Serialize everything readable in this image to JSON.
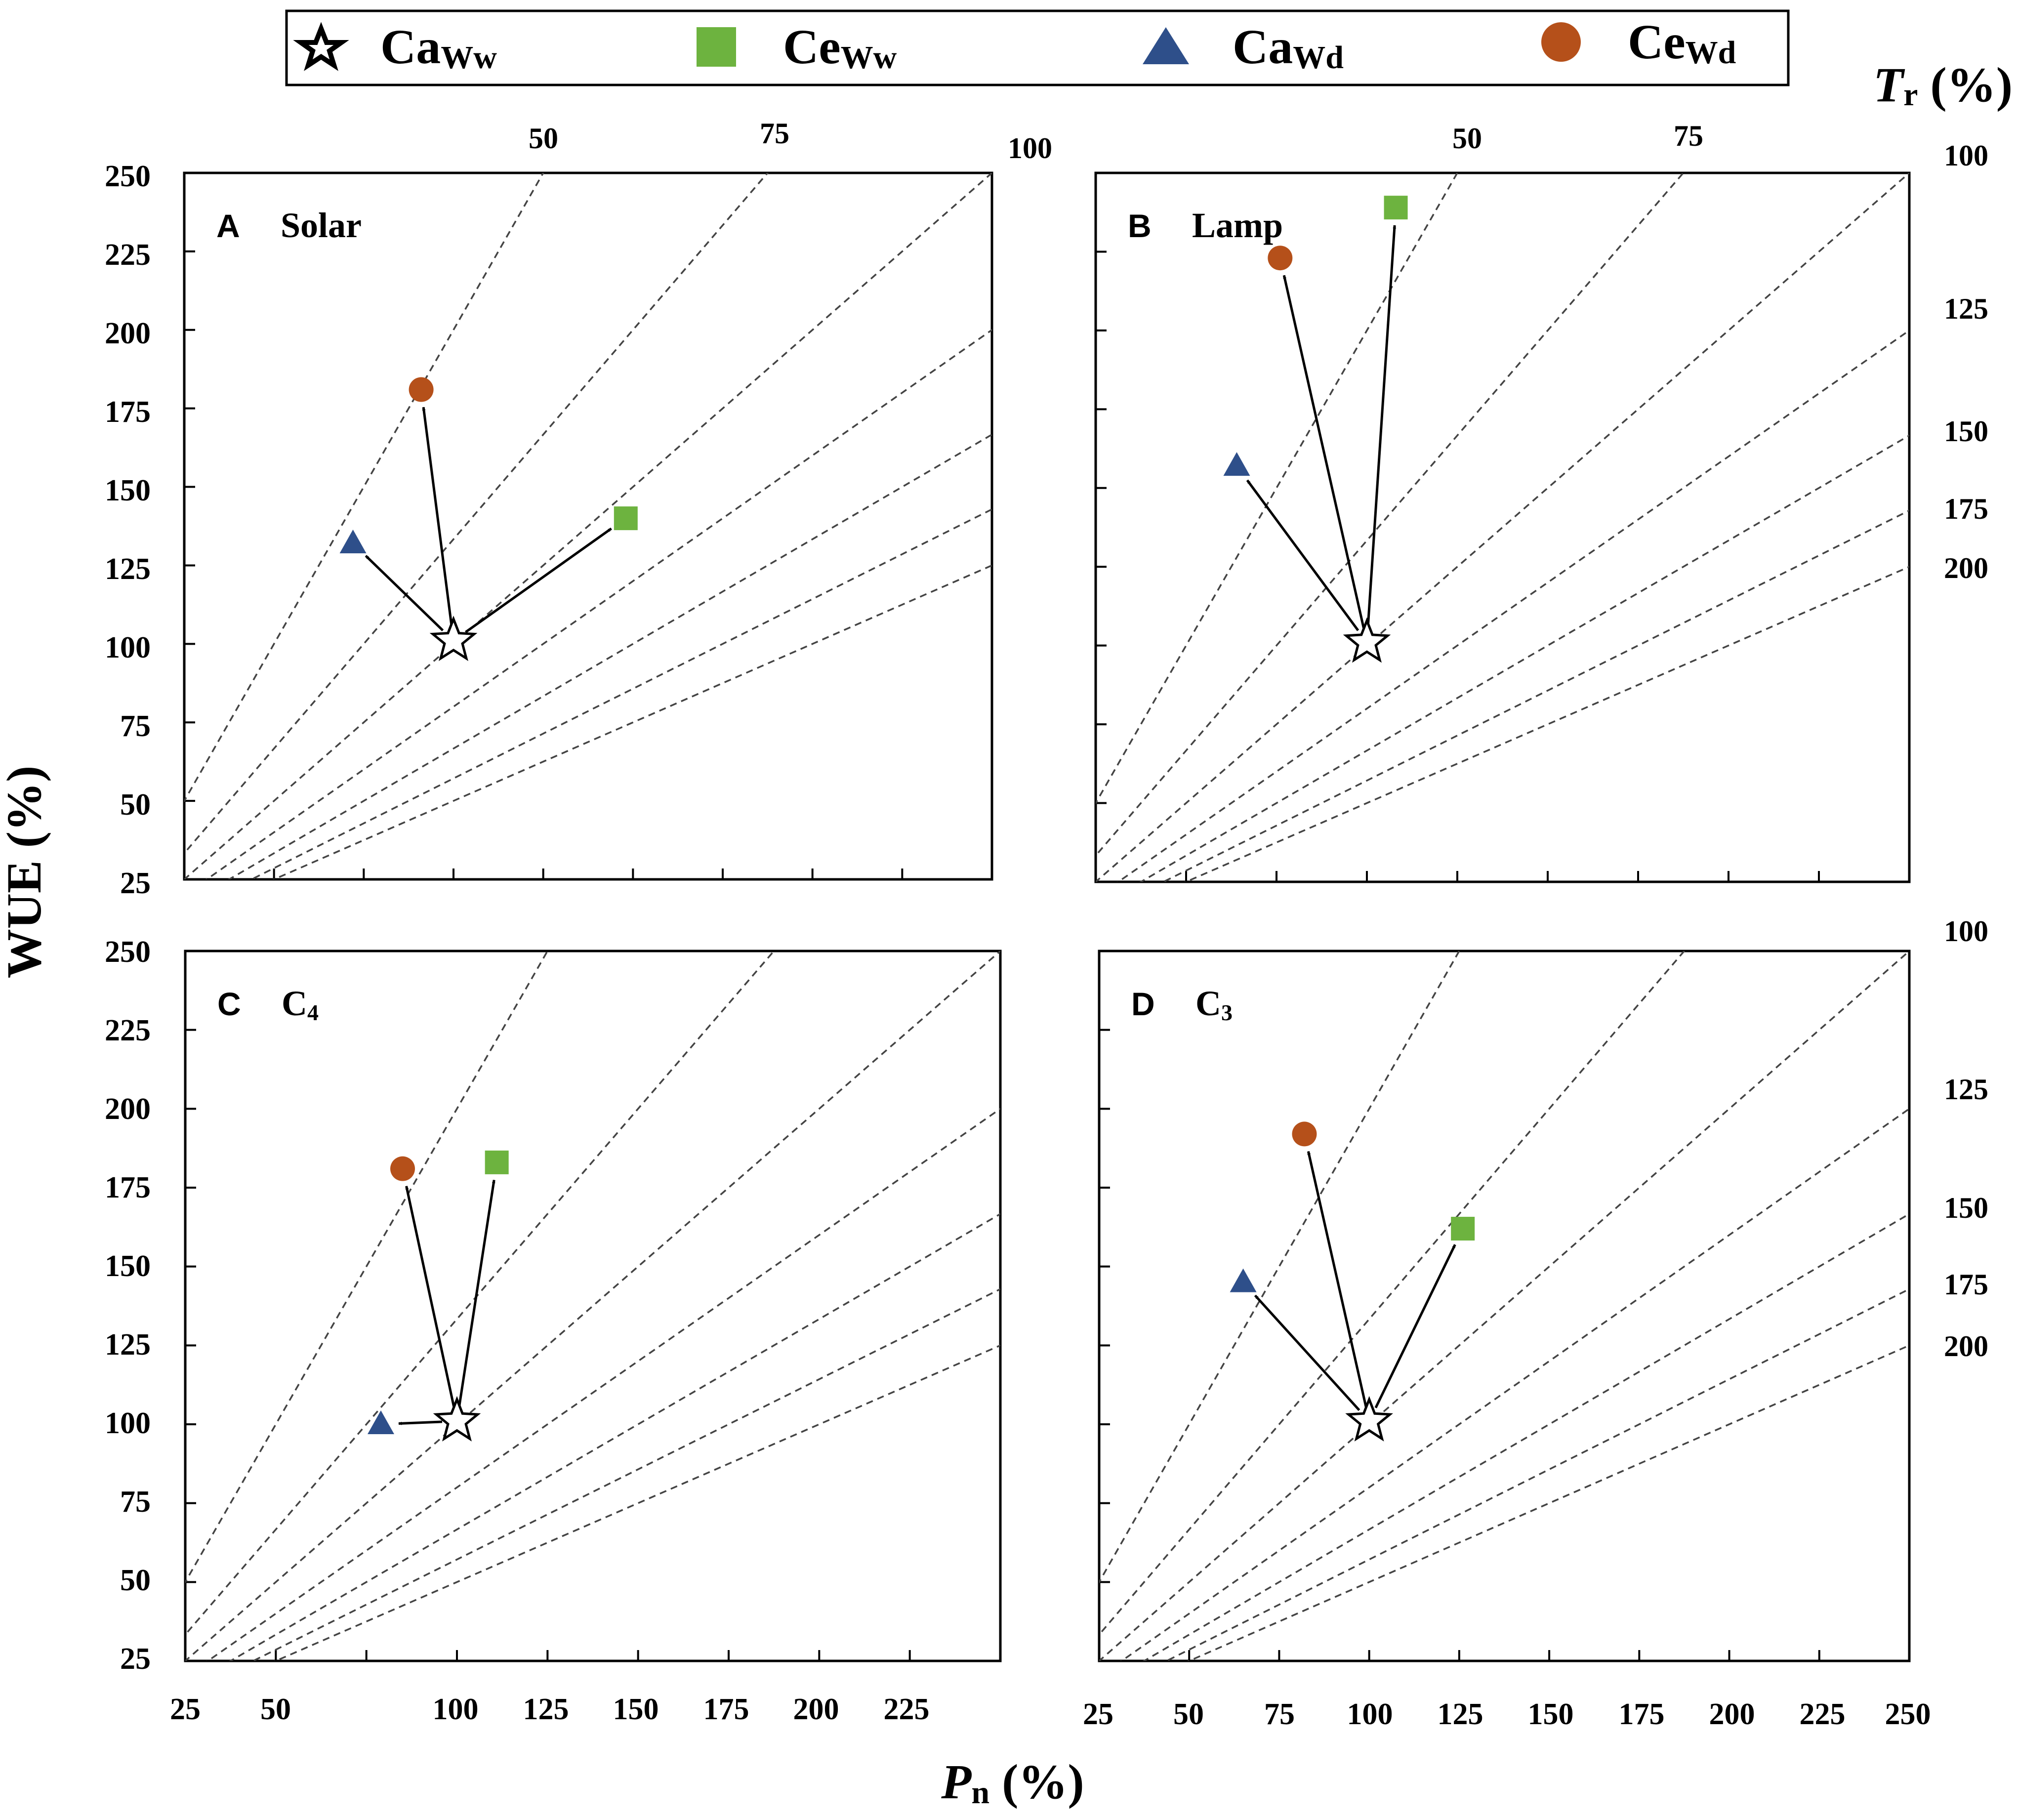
{
  "legend": {
    "items": [
      {
        "key": "CaWw",
        "base": "Ca",
        "sub": "Ww",
        "marker": "star",
        "color": "#ffffff"
      },
      {
        "key": "CeWw",
        "base": "Ce",
        "sub": "Ww",
        "marker": "square",
        "color": "#6db33f"
      },
      {
        "key": "CaWd",
        "base": "Ca",
        "sub": "Wd",
        "marker": "triangle",
        "color": "#2e4f8a"
      },
      {
        "key": "CeWd",
        "base": "Ce",
        "sub": "Wd",
        "marker": "circle",
        "color": "#b5501a"
      }
    ]
  },
  "axes": {
    "y_label": "WUE (%)",
    "x_label_main": "P",
    "x_label_sub": "n",
    "x_label_unit": " (%)",
    "tr_label_main": "T",
    "tr_label_sub": "r",
    "tr_label_unit": " (%)",
    "y_ticks": [
      "250",
      "225",
      "200",
      "175",
      "150",
      "125",
      "100",
      "75",
      "50",
      "25"
    ],
    "x_ticks_left": [
      "25",
      "50",
      "100",
      "125",
      "150",
      "175",
      "200",
      "225"
    ],
    "x_ticks_right": [
      "25",
      "50",
      "75",
      "100",
      "125",
      "150",
      "175",
      "200",
      "225",
      "250"
    ],
    "tr_top_a": [
      "50",
      "75",
      "100"
    ],
    "tr_top_b": [
      "50",
      "75",
      "100"
    ],
    "tr_right_b": [
      "125",
      "150",
      "175",
      "200"
    ],
    "tr_right_d": [
      "100",
      "125",
      "150",
      "175",
      "200"
    ]
  },
  "colors": {
    "square": "#6db33f",
    "triangle": "#2e4f8a",
    "circle": "#b5501a",
    "dash": "#444444"
  },
  "chart_data": [
    {
      "type": "scatter",
      "panel": "A",
      "title": "Solar",
      "xlabel": "Pn (%)",
      "ylabel": "WUE (%)",
      "xlim": [
        25,
        250
      ],
      "ylim": [
        25,
        250
      ],
      "reference_lines_Tr": [
        50,
        75,
        100,
        125,
        150,
        175,
        200
      ],
      "series": [
        {
          "name": "CaWw",
          "x": 100,
          "y": 101
        },
        {
          "name": "CeWw",
          "x": 148,
          "y": 140
        },
        {
          "name": "CaWd",
          "x": 72,
          "y": 132
        },
        {
          "name": "CeWd",
          "x": 91,
          "y": 181
        }
      ],
      "arrows_from": "CaWw"
    },
    {
      "type": "scatter",
      "panel": "B",
      "title": "Lamp",
      "xlabel": "Pn (%)",
      "ylabel": "WUE (%)",
      "xlim": [
        25,
        250
      ],
      "ylim": [
        25,
        250
      ],
      "reference_lines_Tr": [
        50,
        75,
        100,
        125,
        150,
        175,
        200
      ],
      "series": [
        {
          "name": "CaWw",
          "x": 100,
          "y": 101
        },
        {
          "name": "CeWw",
          "x": 108,
          "y": 239
        },
        {
          "name": "CaWd",
          "x": 64,
          "y": 157
        },
        {
          "name": "CeWd",
          "x": 76,
          "y": 223
        }
      ],
      "arrows_from": "CaWw"
    },
    {
      "type": "scatter",
      "panel": "C",
      "title": "C4",
      "xlabel": "Pn (%)",
      "ylabel": "WUE (%)",
      "xlim": [
        25,
        250
      ],
      "ylim": [
        25,
        250
      ],
      "reference_lines_Tr": [
        50,
        75,
        100,
        125,
        150,
        175,
        200
      ],
      "series": [
        {
          "name": "CaWw",
          "x": 100,
          "y": 101
        },
        {
          "name": "CeWw",
          "x": 111,
          "y": 183
        },
        {
          "name": "CaWd",
          "x": 79,
          "y": 100
        },
        {
          "name": "CeWd",
          "x": 85,
          "y": 181
        }
      ],
      "arrows_from": "CaWw"
    },
    {
      "type": "scatter",
      "panel": "D",
      "title": "C3",
      "xlabel": "Pn (%)",
      "ylabel": "WUE (%)",
      "xlim": [
        25,
        250
      ],
      "ylim": [
        25,
        250
      ],
      "reference_lines_Tr": [
        50,
        75,
        100,
        125,
        150,
        175,
        200
      ],
      "series": [
        {
          "name": "CaWw",
          "x": 100,
          "y": 101
        },
        {
          "name": "CeWw",
          "x": 126,
          "y": 162
        },
        {
          "name": "CaWd",
          "x": 65,
          "y": 145
        },
        {
          "name": "CeWd",
          "x": 82,
          "y": 192
        }
      ],
      "arrows_from": "CaWw"
    }
  ]
}
